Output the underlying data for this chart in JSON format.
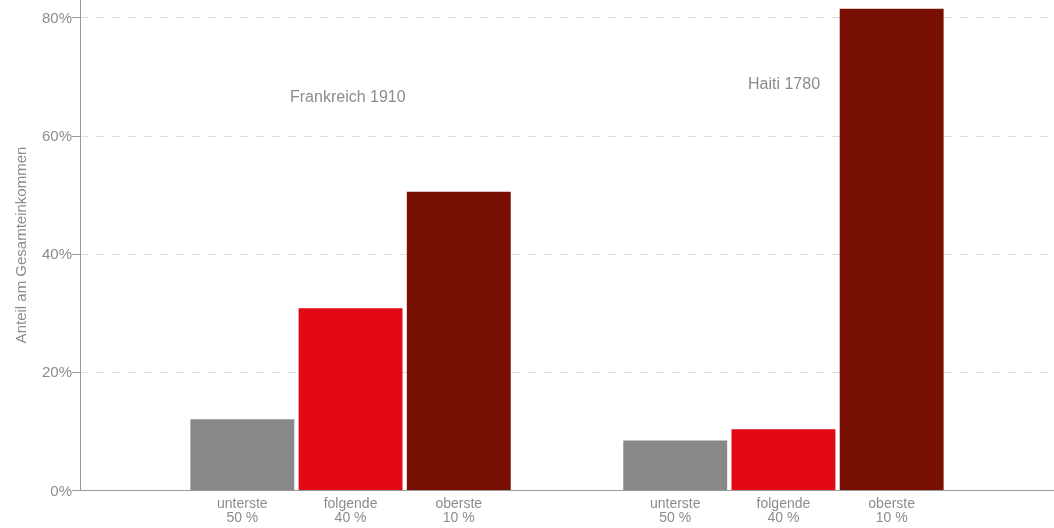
{
  "chart_data": {
    "type": "bar",
    "ylabel": "Anteil am Gesamteinkommen",
    "categories": [
      null,
      "unterste\n50 %",
      "folgende\n40 %",
      "oberste\n10 %",
      null,
      "unterste\n50 %",
      "folgende\n40 %",
      "oberste\n10 %",
      null
    ],
    "values": [
      null,
      12.0,
      30.8,
      50.5,
      null,
      8.4,
      10.3,
      81.5,
      null
    ],
    "colors": [
      "#888888",
      "#888888",
      "#e20815",
      "#771002",
      "#888888",
      "#888888",
      "#e20815",
      "#771002",
      "#888888"
    ],
    "ylim": [
      0,
      83
    ],
    "yticks": [
      {
        "value": 0,
        "label": "0%"
      },
      {
        "value": 20,
        "label": "20%"
      },
      {
        "value": 40,
        "label": "40%"
      },
      {
        "value": 60,
        "label": "60%"
      },
      {
        "value": 80,
        "label": "80%"
      }
    ],
    "annotations": [
      "Frankreich 1910",
      "Haiti 1780"
    ],
    "grid": "y"
  }
}
